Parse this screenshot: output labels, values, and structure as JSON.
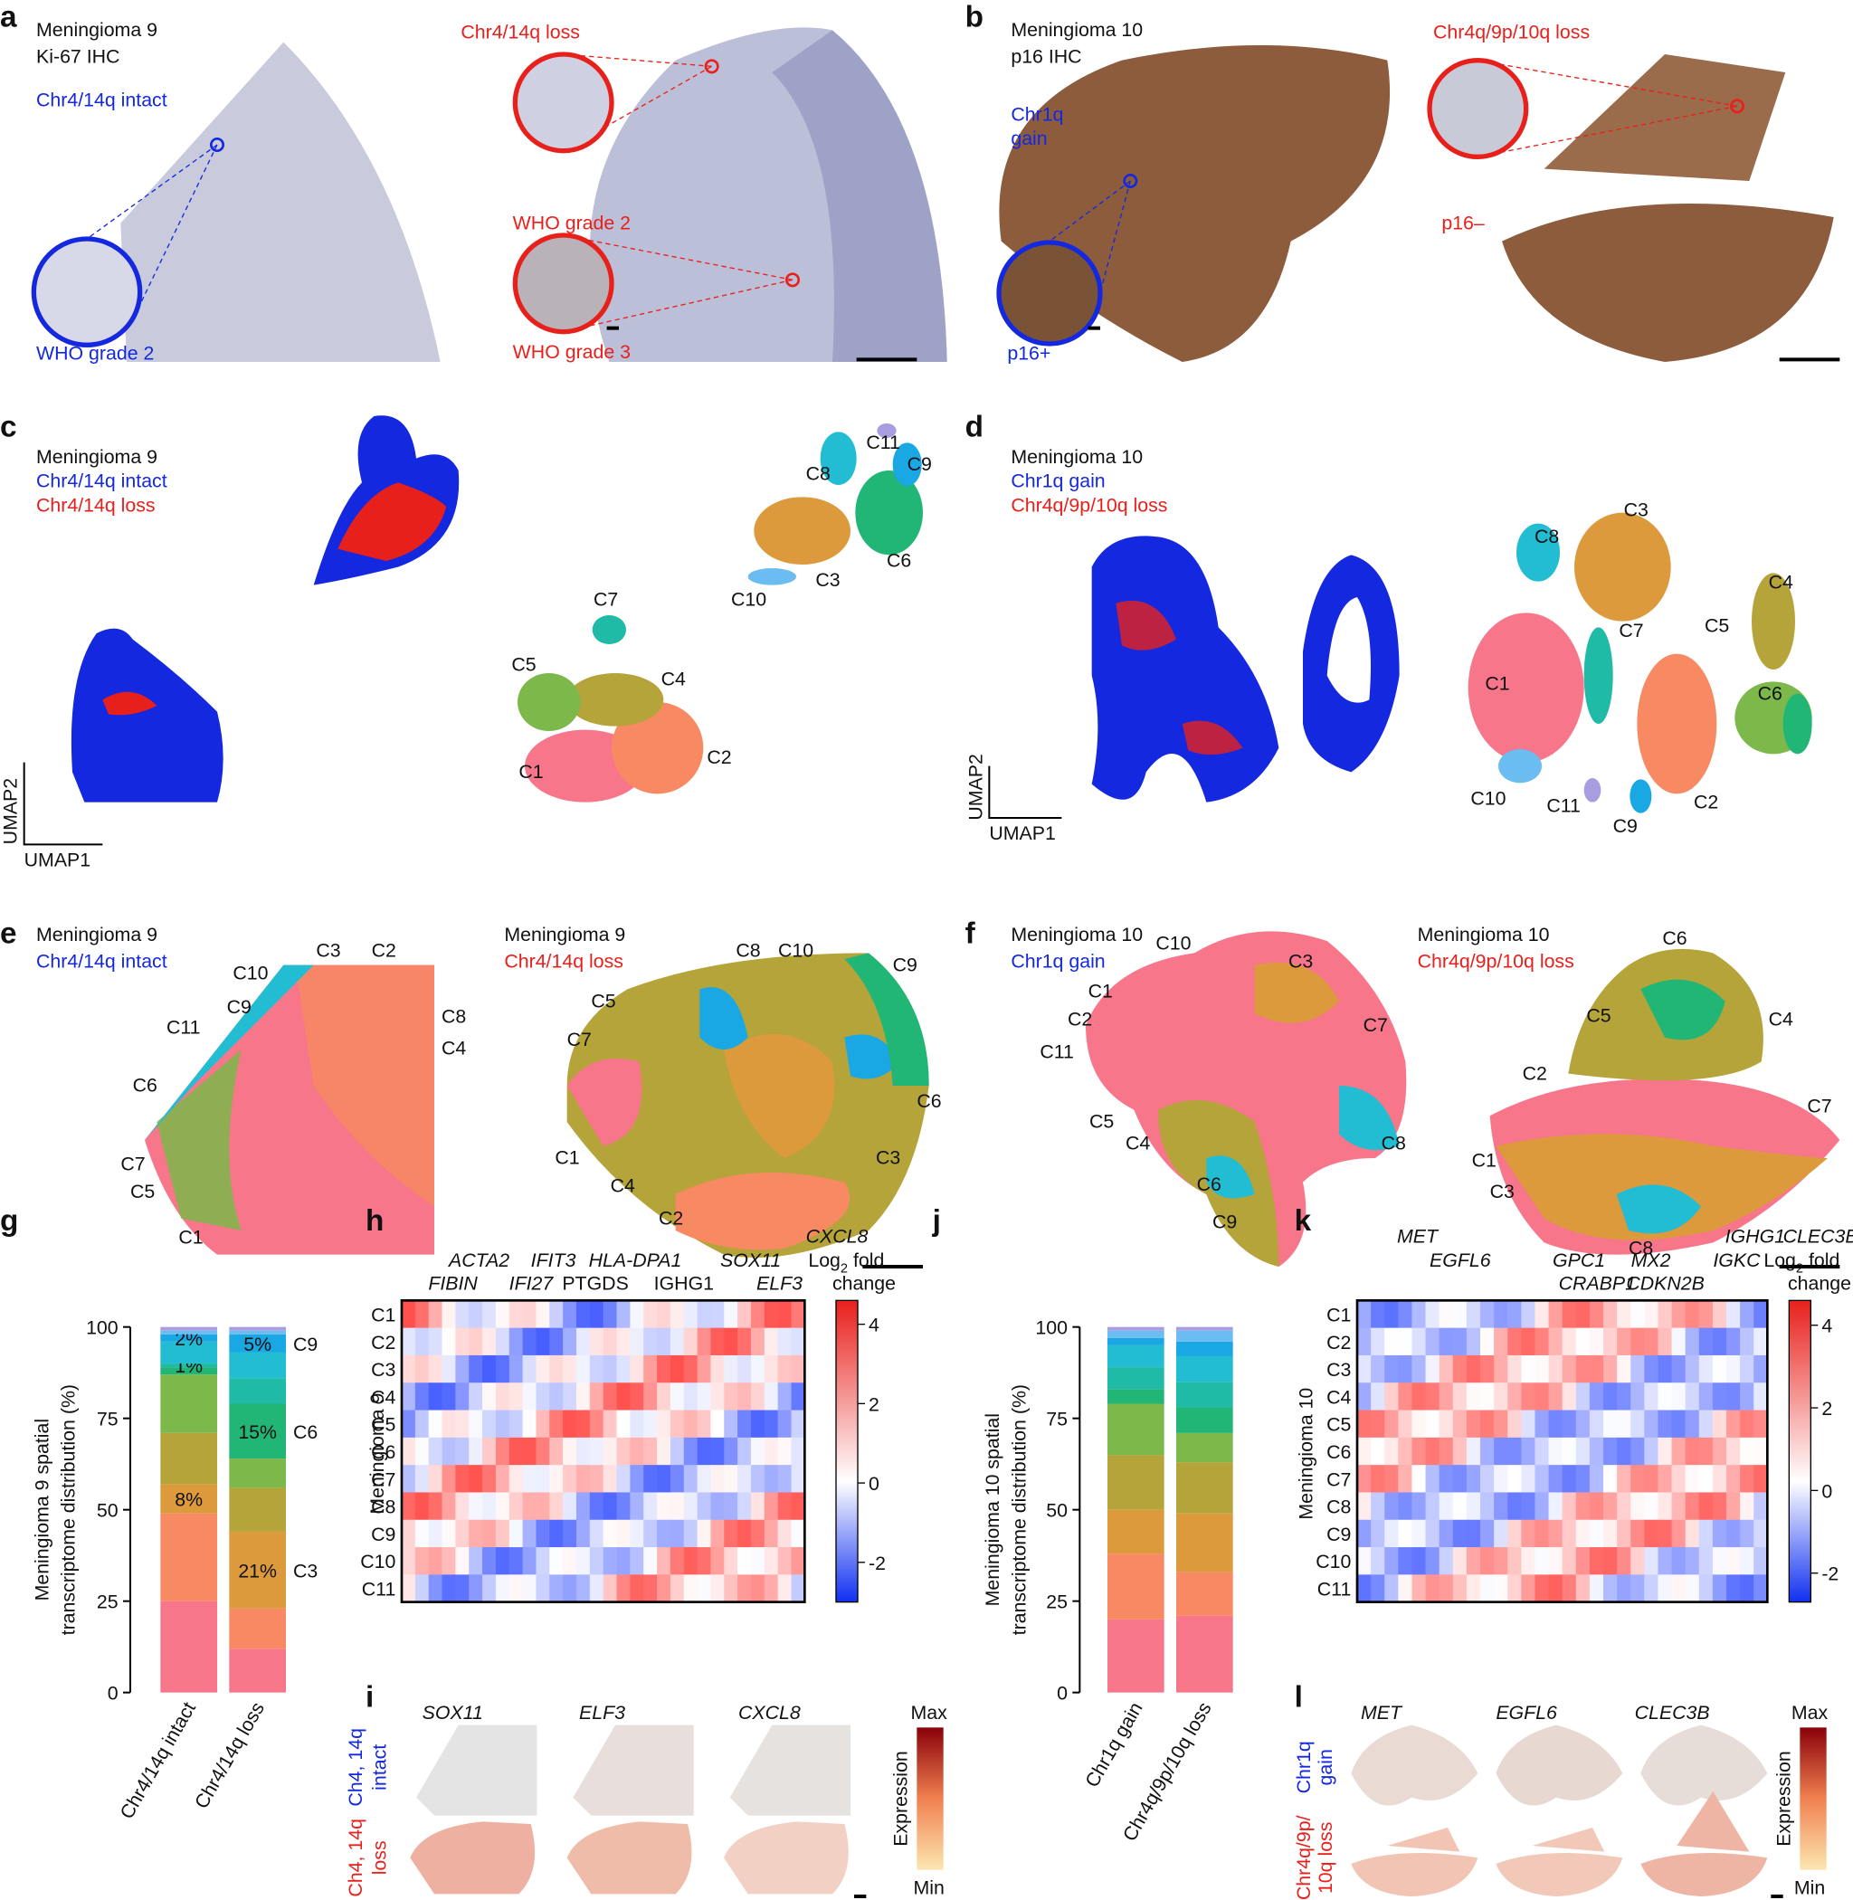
{
  "panels": {
    "a": {
      "letter": "a",
      "sample": "Meningioma 9",
      "stain": "Ki-67 IHC",
      "left_label": "Chr4/14q intact",
      "left_grade": "WHO grade 2",
      "right_label": "Chr4/14q loss",
      "right_grade_top": "WHO grade 2",
      "right_grade_bottom": "WHO grade 3"
    },
    "b": {
      "letter": "b",
      "sample": "Meningioma 10",
      "stain": "p16 IHC",
      "left_label_1": "Chr1q",
      "left_label_2": "gain",
      "left_marker": "p16+",
      "right_label": "Chr4q/9p/10q loss",
      "right_marker": "p16–"
    },
    "c": {
      "letter": "c",
      "sample": "Meningioma 9",
      "group_1": "Chr4/14q intact",
      "group_2": "Chr4/14q loss",
      "y_axis": "UMAP2",
      "x_axis": "UMAP1"
    },
    "d": {
      "letter": "d",
      "sample": "Meningioma 10",
      "group_1": "Chr1q gain",
      "group_2": "Chr4q/9p/10q loss",
      "y_axis": "UMAP2",
      "x_axis": "UMAP1"
    },
    "e": {
      "letter": "e",
      "left_sample": "Meningioma 9",
      "left_group": "Chr4/14q intact",
      "right_sample": "Meningioma 9",
      "right_group": "Chr4/14q loss"
    },
    "f": {
      "letter": "f",
      "left_sample": "Meningioma 10",
      "left_group": "Chr1q gain",
      "right_sample": "Meningioma 10",
      "right_group": "Chr4q/9p/10q loss"
    },
    "g": {
      "letter": "g"
    },
    "h": {
      "letter": "h",
      "genes": [
        "CXCL8",
        "ACTA2",
        "IFIT3",
        "HLA-DPA1",
        "SOX11",
        "FIBIN",
        "IFI27",
        "PTGDS",
        "IGHG1",
        "ELF3"
      ],
      "rows_title": "Meningioma 9",
      "legend": {
        "log": "Log",
        "sub": "2",
        "fold": " fold",
        "change": "change"
      },
      "clim": [
        -3,
        4.6
      ],
      "cticks": [
        -2,
        0,
        2,
        4
      ]
    },
    "i": {
      "letter": "i",
      "genes": [
        "SOX11",
        "ELF3",
        "CXCL8"
      ],
      "row_1": [
        "Ch4, 14q",
        "intact"
      ],
      "row_2": [
        "Ch4, 14q",
        "loss"
      ],
      "legend_max": "Max",
      "legend_title": "Expression",
      "legend_min": "Min"
    },
    "j": {
      "letter": "j"
    },
    "k": {
      "letter": "k",
      "genes": [
        "MET",
        "IGHG1",
        "CLEC3B",
        "EGFL6",
        "GPC1",
        "MX2",
        "IGKC",
        "CRABP1",
        "CDKN2B"
      ],
      "rows_title": "Meningioma 10",
      "legend": {
        "log": "Log",
        "sub": "2",
        "fold": " fold",
        "change": "change"
      },
      "clim": [
        -2.7,
        4.6
      ],
      "cticks": [
        -2,
        0,
        2,
        4
      ]
    },
    "l": {
      "letter": "l",
      "genes": [
        "MET",
        "EGFL6",
        "CLEC3B"
      ],
      "row_1": [
        "Chr1q",
        "gain"
      ],
      "row_2": [
        "Chr4q/9p/",
        "10q loss"
      ],
      "legend_max": "Max",
      "legend_title": "Expression",
      "legend_min": "Min"
    }
  },
  "clusters": [
    "C1",
    "C2",
    "C3",
    "C4",
    "C5",
    "C6",
    "C7",
    "C8",
    "C9",
    "C10",
    "C11"
  ],
  "chart_data": [
    {
      "type": "bar",
      "stacked": true,
      "ylabel": [
        "Meningioma 9 spatial",
        "transcriptome distribution (%)"
      ],
      "categories": [
        "Chr4/14q intact",
        "Chr4/14q loss"
      ],
      "ylim": [
        0,
        100
      ],
      "yticks": [
        0,
        25,
        50,
        75,
        100
      ],
      "series": [
        {
          "color": "#f7768a",
          "values": [
            25,
            12
          ]
        },
        {
          "color": "#f78a62",
          "values": [
            24,
            11
          ]
        },
        {
          "color": "#dc9a3c",
          "values": [
            8,
            21
          ],
          "value_labels": [
            "8%",
            "21%"
          ]
        },
        {
          "color": "#b5a43a",
          "values": [
            14,
            12
          ]
        },
        {
          "color": "#7cb84a",
          "values": [
            16,
            8
          ]
        },
        {
          "color": "#22b676",
          "values": [
            2,
            15
          ],
          "value_labels": [
            null,
            "15%"
          ]
        },
        {
          "color": "#1fbba6",
          "values": [
            1,
            7
          ],
          "value_labels": [
            "1%",
            null
          ]
        },
        {
          "color": "#22bdd2",
          "values": [
            6,
            7
          ]
        },
        {
          "color": "#1aa8e4",
          "values": [
            2,
            5
          ],
          "value_labels": [
            "2%",
            "5%"
          ]
        },
        {
          "color": "#6bbcf0",
          "values": [
            1,
            1
          ]
        },
        {
          "color": "#a99de2",
          "values": [
            1,
            1
          ]
        }
      ],
      "annotations": [
        "C9",
        "C6",
        "C3"
      ]
    },
    {
      "type": "bar",
      "stacked": true,
      "ylabel": [
        "Meningioma 10 spatial",
        "transcriptome distribution (%)"
      ],
      "categories": [
        "Chr1q gain",
        "Chr4q/9p/10q loss"
      ],
      "ylim": [
        0,
        100
      ],
      "yticks": [
        0,
        25,
        50,
        75,
        100
      ],
      "series": [
        {
          "color": "#f7768a",
          "values": [
            20,
            21
          ]
        },
        {
          "color": "#f78a62",
          "values": [
            18,
            12
          ]
        },
        {
          "color": "#dc9a3c",
          "values": [
            12,
            16
          ]
        },
        {
          "color": "#b5a43a",
          "values": [
            15,
            14
          ]
        },
        {
          "color": "#7cb84a",
          "values": [
            14,
            8
          ]
        },
        {
          "color": "#22b676",
          "values": [
            4,
            7
          ]
        },
        {
          "color": "#1fbba6",
          "values": [
            6,
            7
          ]
        },
        {
          "color": "#22bdd2",
          "values": [
            6,
            7
          ]
        },
        {
          "color": "#1aa8e4",
          "values": [
            2,
            4
          ]
        },
        {
          "color": "#6bbcf0",
          "values": [
            2,
            3
          ]
        },
        {
          "color": "#a99de2",
          "values": [
            1,
            1
          ]
        }
      ]
    }
  ]
}
